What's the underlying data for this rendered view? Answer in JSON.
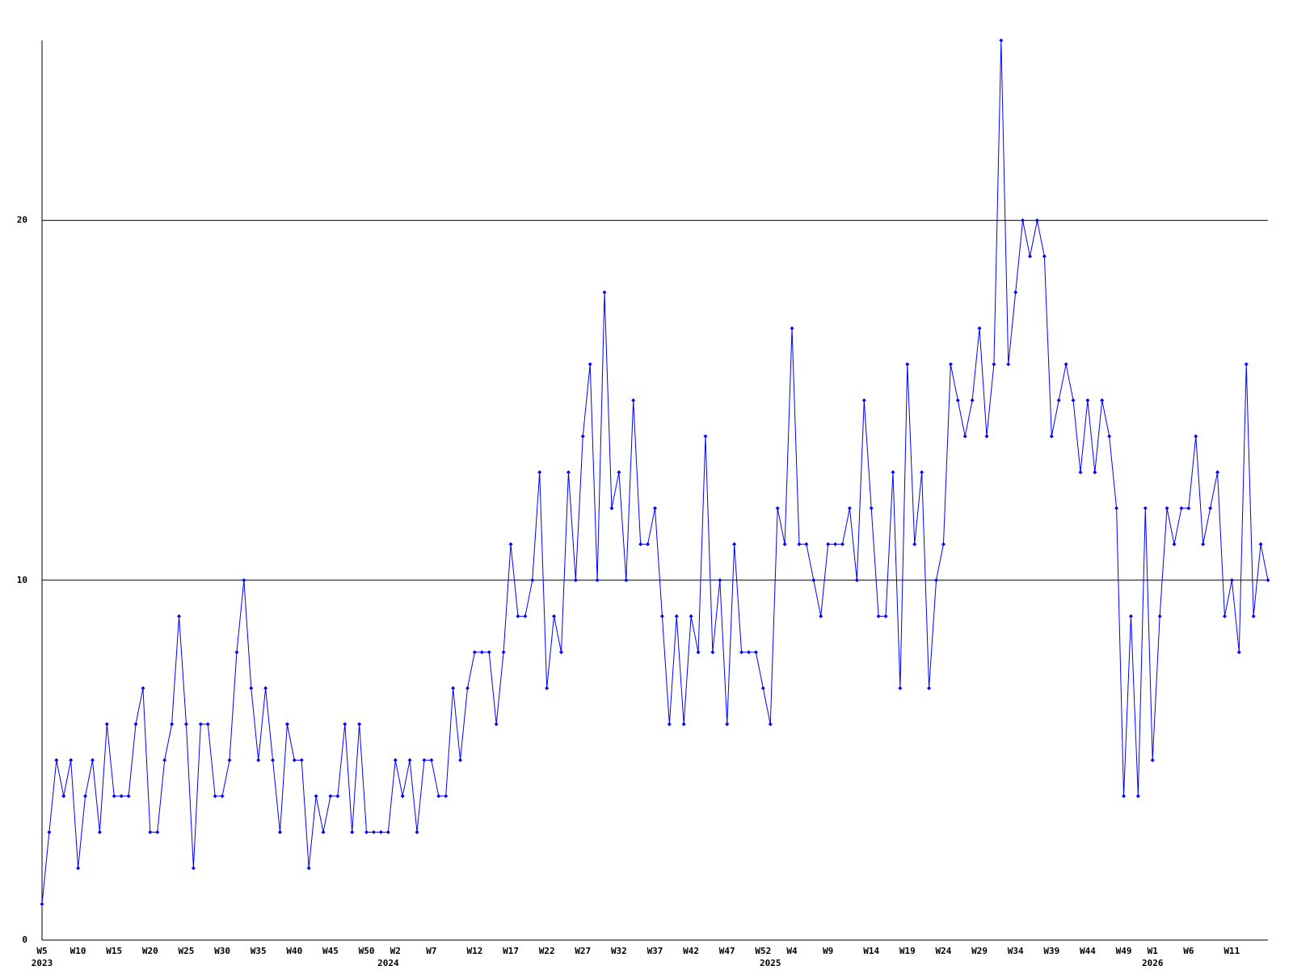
{
  "chart_data": {
    "type": "line",
    "color": "#0000ff",
    "grid": true,
    "ylim": [
      0,
      25
    ],
    "yticks": [
      0,
      10,
      20
    ],
    "categories": [
      "W5",
      null,
      null,
      null,
      null,
      "W10",
      null,
      null,
      null,
      null,
      "W15",
      null,
      null,
      null,
      null,
      "W20",
      null,
      null,
      null,
      null,
      "W25",
      null,
      null,
      null,
      null,
      "W30",
      null,
      null,
      null,
      null,
      "W35",
      null,
      null,
      null,
      null,
      "W40",
      null,
      null,
      null,
      null,
      "W45",
      null,
      null,
      null,
      null,
      "W50",
      null,
      null,
      null,
      "W2",
      null,
      null,
      null,
      null,
      "W7",
      null,
      null,
      null,
      null,
      null,
      "W12",
      null,
      null,
      null,
      null,
      "W17",
      null,
      null,
      null,
      null,
      "W22",
      null,
      null,
      null,
      null,
      "W27",
      null,
      null,
      null,
      null,
      "W32",
      null,
      null,
      null,
      null,
      "W37",
      null,
      null,
      null,
      null,
      "W42",
      null,
      null,
      null,
      null,
      "W47",
      null,
      null,
      null,
      null,
      "W52",
      null,
      null,
      null,
      "W4",
      null,
      null,
      null,
      null,
      "W9",
      null,
      null,
      null,
      null,
      null,
      "W14",
      null,
      null,
      null,
      null,
      "W19",
      null,
      null,
      null,
      null,
      "W24",
      null,
      null,
      null,
      null,
      "W29",
      null,
      null,
      null,
      null,
      "W34",
      null,
      null,
      null,
      null,
      "W39",
      null,
      null,
      null,
      null,
      "W44",
      null,
      null,
      null,
      null,
      "W49",
      null,
      null,
      null,
      "W1",
      null,
      null,
      null,
      null,
      "W6",
      null,
      null,
      null,
      null,
      null,
      "W11",
      null,
      null,
      null,
      null,
      null
    ],
    "years": [
      "2023",
      null,
      null,
      null,
      null,
      null,
      null,
      null,
      null,
      null,
      null,
      null,
      null,
      null,
      null,
      null,
      null,
      null,
      null,
      null,
      null,
      null,
      null,
      null,
      null,
      null,
      null,
      null,
      null,
      null,
      null,
      null,
      null,
      null,
      null,
      null,
      null,
      null,
      null,
      null,
      null,
      null,
      null,
      null,
      null,
      null,
      null,
      null,
      "2024",
      null,
      null,
      null,
      null,
      null,
      null,
      null,
      null,
      null,
      null,
      null,
      null,
      null,
      null,
      null,
      null,
      null,
      null,
      null,
      null,
      null,
      null,
      null,
      null,
      null,
      null,
      null,
      null,
      null,
      null,
      null,
      null,
      null,
      null,
      null,
      null,
      null,
      null,
      null,
      null,
      null,
      null,
      null,
      null,
      null,
      null,
      null,
      null,
      null,
      null,
      null,
      null,
      "2025",
      null,
      null,
      null,
      null,
      null,
      null,
      null,
      null,
      null,
      null,
      null,
      null,
      null,
      null,
      null,
      null,
      null,
      null,
      null,
      null,
      null,
      null,
      null,
      null,
      null,
      null,
      null,
      null,
      null,
      null,
      null,
      null,
      null,
      null,
      null,
      null,
      null,
      null,
      null,
      null,
      null,
      null,
      null,
      null,
      null,
      null,
      null,
      null,
      null,
      null,
      null,
      null,
      "2026",
      null,
      null,
      null,
      null,
      null,
      null,
      null,
      null,
      null,
      null,
      null,
      null,
      null,
      null,
      null,
      null
    ],
    "values": [
      1,
      3,
      5,
      4,
      5,
      2,
      4,
      5,
      3,
      6,
      4,
      4,
      4,
      6,
      7,
      3,
      3,
      5,
      6,
      9,
      6,
      2,
      6,
      6,
      4,
      4,
      5,
      8,
      10,
      7,
      5,
      7,
      5,
      3,
      6,
      5,
      5,
      2,
      4,
      3,
      4,
      4,
      6,
      3,
      6,
      3,
      3,
      3,
      3,
      5,
      4,
      5,
      3,
      5,
      5,
      4,
      4,
      7,
      5,
      7,
      8,
      8,
      8,
      6,
      8,
      11,
      9,
      9,
      10,
      13,
      7,
      9,
      8,
      13,
      10,
      14,
      16,
      10,
      18,
      12,
      13,
      10,
      15,
      11,
      11,
      12,
      9,
      6,
      9,
      6,
      9,
      8,
      14,
      8,
      10,
      6,
      11,
      8,
      8,
      8,
      7,
      6,
      12,
      11,
      17,
      11,
      11,
      10,
      9,
      11,
      11,
      11,
      12,
      10,
      15,
      12,
      9,
      9,
      13,
      7,
      16,
      11,
      13,
      7,
      10,
      11,
      16,
      15,
      14,
      15,
      17,
      14,
      16,
      25,
      16,
      18,
      20,
      19,
      20,
      19,
      14,
      15,
      16,
      15,
      13,
      15,
      13,
      15,
      14,
      12,
      4,
      9,
      4,
      12,
      5,
      9,
      12,
      11,
      12,
      12,
      14,
      11,
      12,
      13,
      9,
      10,
      8,
      16,
      9,
      11,
      10
    ]
  }
}
